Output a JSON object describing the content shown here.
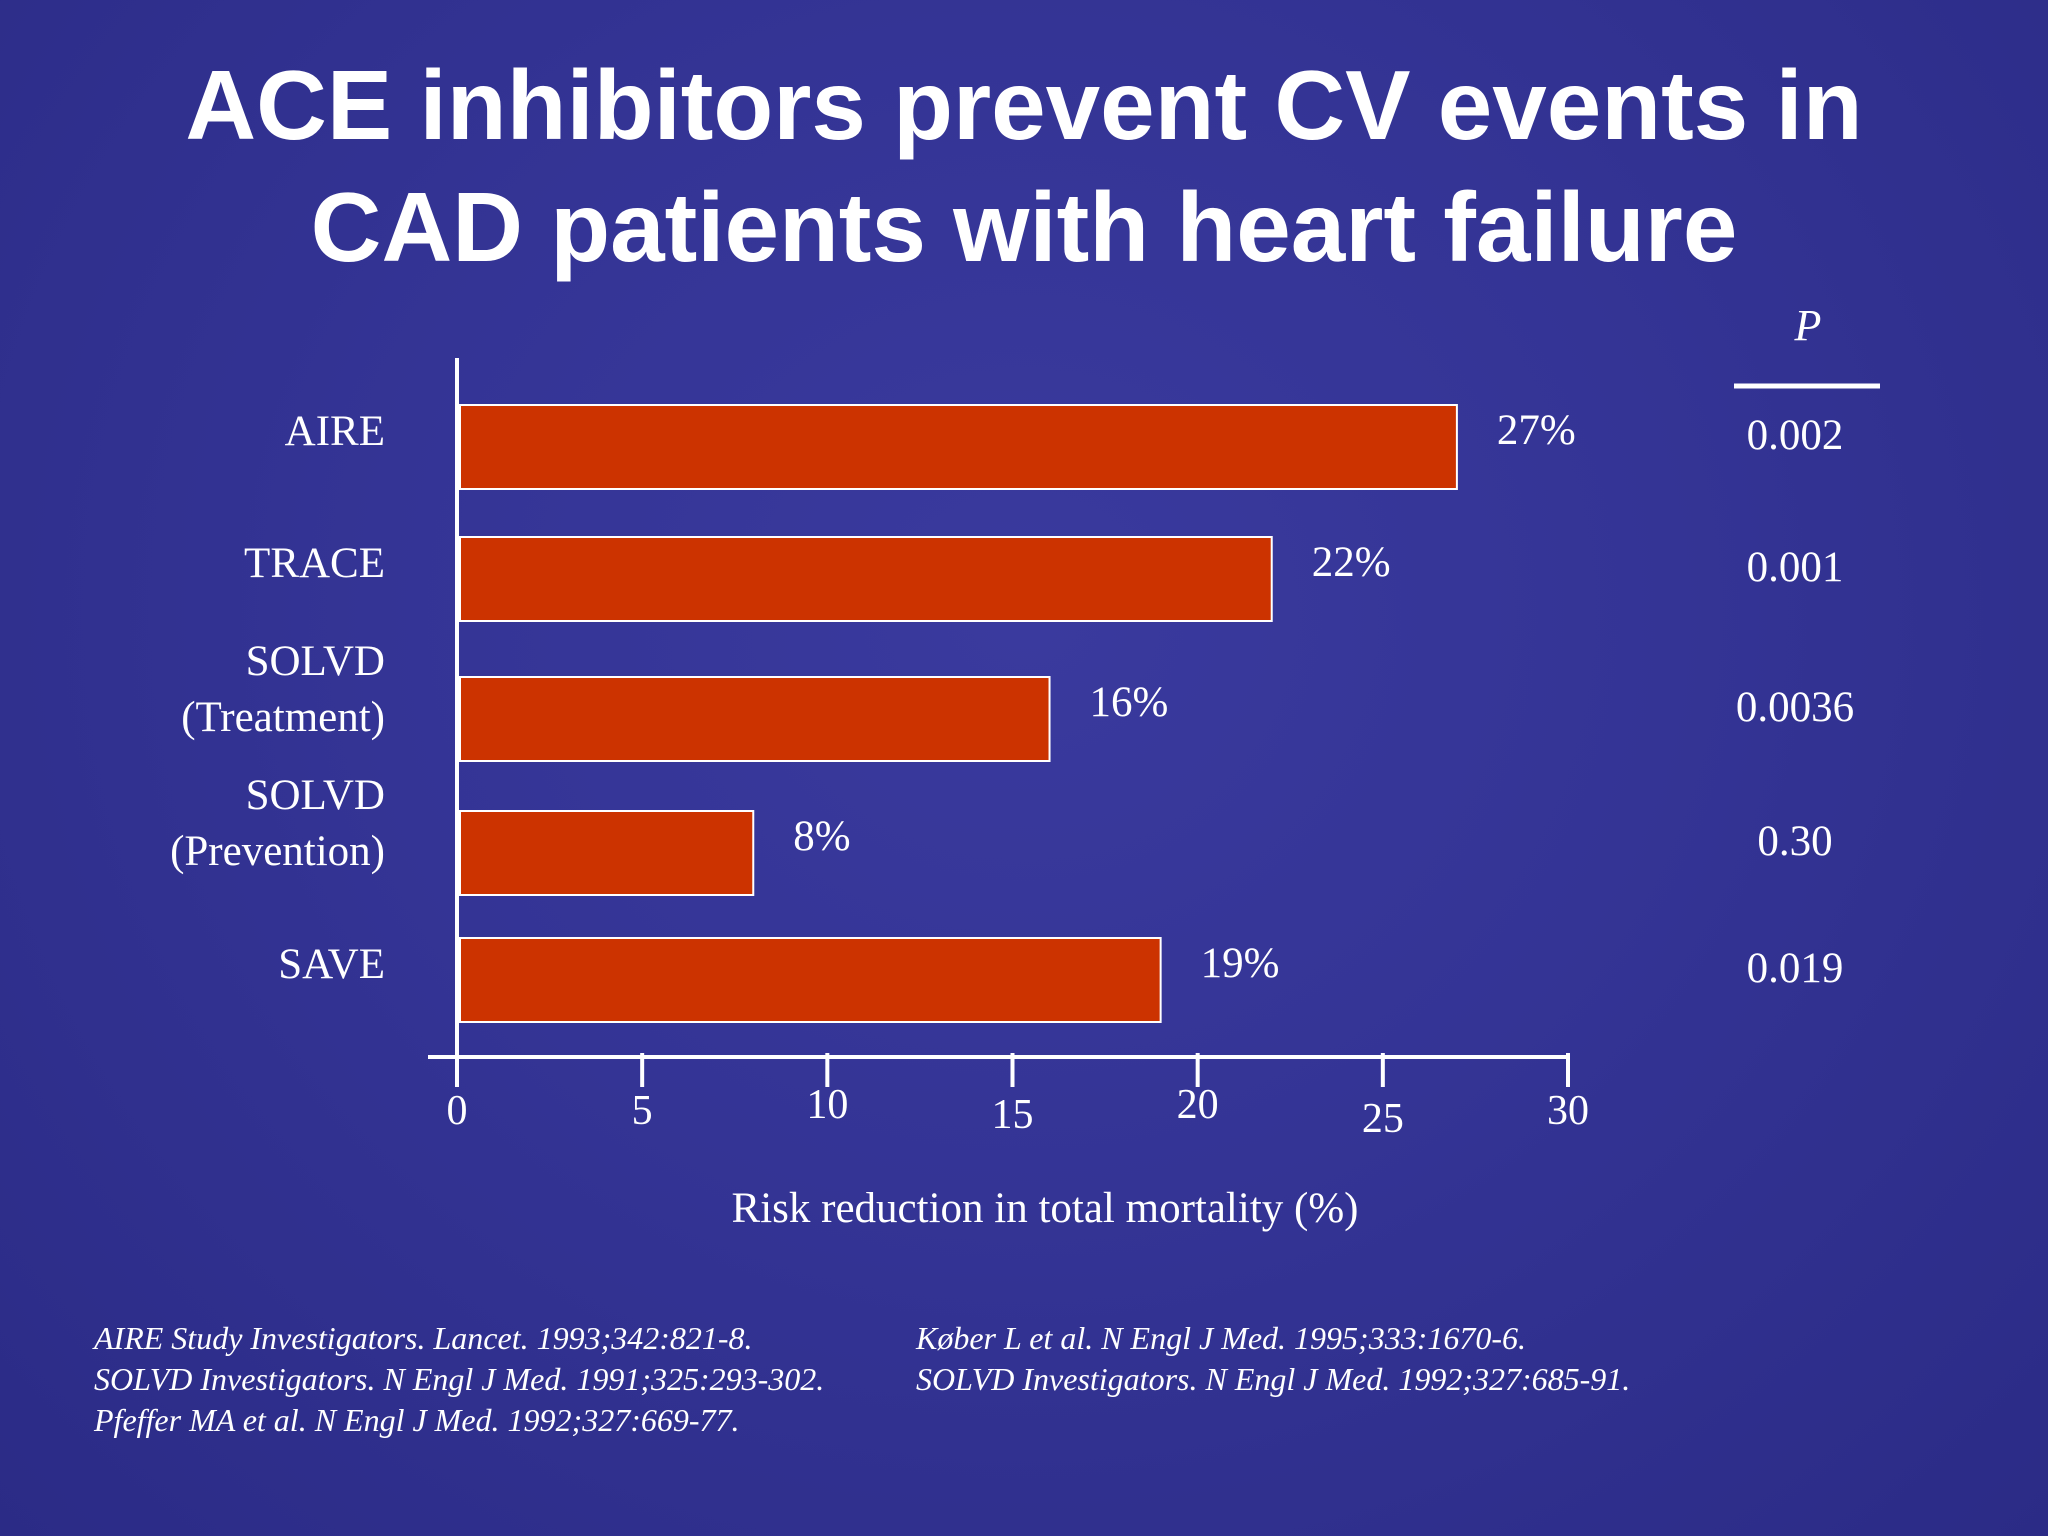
{
  "slide": {
    "title_line1": "ACE inhibitors prevent CV events in",
    "title_line2": "CAD patients with heart failure"
  },
  "chart_data": {
    "type": "bar",
    "orientation": "horizontal",
    "categories": [
      [
        "AIRE"
      ],
      [
        "TRACE"
      ],
      [
        "SOLVD",
        "(Treatment)"
      ],
      [
        "SOLVD",
        "(Prevention)"
      ],
      [
        "SAVE"
      ]
    ],
    "values": [
      27,
      22,
      16,
      8,
      19
    ],
    "value_labels": [
      "27%",
      "22%",
      "16%",
      "8%",
      "19%"
    ],
    "p_header": "P",
    "p_values": [
      "0.002",
      "0.001",
      "0.0036",
      "0.30",
      "0.019"
    ],
    "xlabel": "Risk reduction in total mortality (%)",
    "xlim": [
      0,
      30
    ],
    "xticks": [
      0,
      5,
      10,
      15,
      20,
      25,
      30
    ],
    "xtick_labels": [
      "0",
      "5",
      "10",
      "15",
      "20",
      "25",
      "30"
    ],
    "grid": false,
    "colors": {
      "bar_fill": "#cc3300",
      "bar_stroke": "#ffffff",
      "axis": "#ffffff",
      "background": "#343495"
    }
  },
  "references": {
    "left": [
      "AIRE Study Investigators. Lancet. 1993;342:821-8.",
      "SOLVD Investigators. N Engl J Med. 1991;325:293-302.",
      "Pfeffer MA et al. N Engl J Med. 1992;327:669-77."
    ],
    "right": [
      "Køber L et al. N Engl J Med. 1995;333:1670-6.",
      "SOLVD Investigators. N Engl J Med. 1992;327:685-91."
    ]
  }
}
